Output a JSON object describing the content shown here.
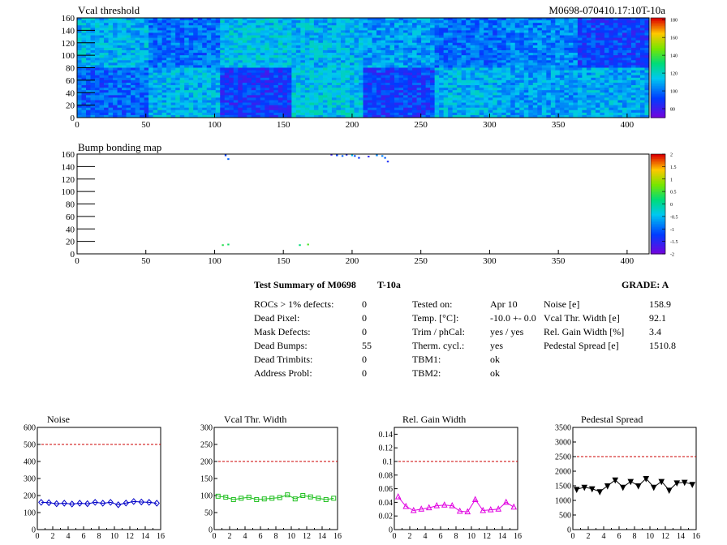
{
  "top_maps": [
    {
      "title": "Vcal threshold",
      "id_label": "M0698-070410.17:10T-10a",
      "x_ticks": [
        "0",
        "50",
        "100",
        "150",
        "200",
        "250",
        "300",
        "350",
        "400"
      ],
      "x_tick_values": [
        0,
        50,
        100,
        150,
        200,
        250,
        300,
        350,
        400
      ],
      "x_range": [
        0,
        416
      ],
      "y_ticks": [
        "0",
        "20",
        "40",
        "60",
        "80",
        "100",
        "120",
        "140",
        "160"
      ],
      "y_tick_values": [
        0,
        20,
        40,
        60,
        80,
        100,
        120,
        140,
        160
      ],
      "y_range": [
        0,
        160
      ],
      "palette_labels": [
        "180",
        "160",
        "140",
        "120",
        "100",
        "80"
      ],
      "palette_values": [
        180,
        160,
        140,
        120,
        100,
        80
      ],
      "palette_range": [
        70,
        182
      ]
    },
    {
      "title": "Bump bonding map",
      "x_ticks": [
        "0",
        "50",
        "100",
        "150",
        "200",
        "250",
        "300",
        "350",
        "400"
      ],
      "x_tick_values": [
        0,
        50,
        100,
        150,
        200,
        250,
        300,
        350,
        400
      ],
      "x_range": [
        0,
        416
      ],
      "y_ticks": [
        "0",
        "20",
        "40",
        "60",
        "80",
        "100",
        "120",
        "140",
        "160"
      ],
      "y_tick_values": [
        0,
        20,
        40,
        60,
        80,
        100,
        120,
        140,
        160
      ],
      "y_range": [
        0,
        160
      ],
      "palette_labels": [
        "2",
        "1.5",
        "1",
        "0.5",
        "0",
        "-0.5",
        "-1",
        "-1.5",
        "-2"
      ],
      "palette_values": [
        2,
        1.5,
        1,
        0.5,
        0,
        -0.5,
        -1,
        -1.5,
        -2
      ],
      "palette_range": [
        -2,
        2
      ]
    }
  ],
  "summary": {
    "title": "Test Summary of M0698",
    "temp_code": "T-10a",
    "grade": "GRADE:  A",
    "defects": [
      {
        "label": "ROCs > 1% defects:",
        "value": "0"
      },
      {
        "label": "Dead Pixel:",
        "value": "0"
      },
      {
        "label": "Mask Defects:",
        "value": "0"
      },
      {
        "label": "Dead Bumps:",
        "value": "55"
      },
      {
        "label": "Dead Trimbits:",
        "value": "0"
      },
      {
        "label": "Address Probl:",
        "value": "0"
      }
    ],
    "conditions": [
      {
        "label": "Tested on:",
        "value": "Apr 10"
      },
      {
        "label": "Temp. [°C]:",
        "value": "-10.0 +- 0.0"
      },
      {
        "label": "Trim / phCal:",
        "value": "yes / yes"
      },
      {
        "label": "Therm. cycl.:",
        "value": "yes"
      },
      {
        "label": "TBM1:",
        "value": "ok"
      },
      {
        "label": "TBM2:",
        "value": "ok"
      }
    ],
    "results": [
      {
        "label": "Noise [e]",
        "value": "158.9"
      },
      {
        "label": "Vcal Thr. Width [e]",
        "value": "92.1"
      },
      {
        "label": "Rel. Gain Width [%]",
        "value": "3.4"
      },
      {
        "label": "Pedestal Spread [e]",
        "value": "1510.8"
      }
    ]
  },
  "chart_data": [
    {
      "type": "heatmap",
      "title": "Vcal threshold",
      "x_range": [
        0,
        416
      ],
      "y_range": [
        0,
        160
      ],
      "z_range": [
        70,
        182
      ],
      "roc_grid": {
        "columns": 8,
        "rows": 2,
        "bottom_row_mean": [
          98,
          112,
          90,
          115,
          92,
          112,
          108,
          110
        ],
        "top_row_mean": [
          112,
          100,
          115,
          112,
          108,
          100,
          104,
          92
        ]
      }
    },
    {
      "type": "heatmap",
      "title": "Bump bonding map",
      "x_range": [
        0,
        416
      ],
      "y_range": [
        0,
        160
      ],
      "z_range": [
        -2,
        2
      ],
      "points": [
        {
          "x": 108,
          "y": 158,
          "z": -1.2
        },
        {
          "x": 110,
          "y": 152,
          "z": -1.0
        },
        {
          "x": 106,
          "y": 14,
          "z": 0.4
        },
        {
          "x": 110,
          "y": 15,
          "z": 0.3
        },
        {
          "x": 162,
          "y": 14,
          "z": 0.2
        },
        {
          "x": 168,
          "y": 15,
          "z": 0.6
        },
        {
          "x": 185,
          "y": 159,
          "z": -1.6
        },
        {
          "x": 189,
          "y": 158,
          "z": -1.2
        },
        {
          "x": 193,
          "y": 157,
          "z": -1.0
        },
        {
          "x": 196,
          "y": 159,
          "z": -1.4
        },
        {
          "x": 200,
          "y": 158,
          "z": -0.5
        },
        {
          "x": 202,
          "y": 157,
          "z": -1.1
        },
        {
          "x": 205,
          "y": 154,
          "z": -1.3
        },
        {
          "x": 212,
          "y": 156,
          "z": -1.5
        },
        {
          "x": 218,
          "y": 158,
          "z": -0.8
        },
        {
          "x": 222,
          "y": 157,
          "z": -0.8
        },
        {
          "x": 224,
          "y": 154,
          "z": -1.0
        },
        {
          "x": 226,
          "y": 148,
          "z": -1.4
        }
      ]
    },
    {
      "type": "line",
      "title": "Noise",
      "x": [
        0,
        1,
        2,
        3,
        4,
        5,
        6,
        7,
        8,
        9,
        10,
        11,
        12,
        13,
        14,
        15
      ],
      "values": [
        160,
        158,
        152,
        155,
        150,
        155,
        152,
        160,
        155,
        160,
        146,
        156,
        165,
        162,
        160,
        155
      ],
      "xlim": [
        0,
        16
      ],
      "ylim": [
        0,
        600
      ],
      "x_ticks": [
        "0",
        "2",
        "4",
        "6",
        "8",
        "10",
        "12",
        "14",
        "16"
      ],
      "y_ticks": [
        "0",
        "100",
        "200",
        "300",
        "400",
        "500",
        "600"
      ],
      "threshold": 500,
      "color": "#0000c8",
      "marker": "diamond"
    },
    {
      "type": "line",
      "title": "Vcal Thr. Width",
      "x": [
        0,
        1,
        2,
        3,
        4,
        5,
        6,
        7,
        8,
        9,
        10,
        11,
        12,
        13,
        14,
        15
      ],
      "values": [
        98,
        95,
        88,
        92,
        95,
        88,
        90,
        92,
        94,
        102,
        90,
        100,
        96,
        92,
        88,
        92
      ],
      "xlim": [
        0,
        16
      ],
      "ylim": [
        0,
        300
      ],
      "x_ticks": [
        "0",
        "2",
        "4",
        "6",
        "8",
        "10",
        "12",
        "14",
        "16"
      ],
      "y_ticks": [
        "0",
        "50",
        "100",
        "150",
        "200",
        "250",
        "300"
      ],
      "threshold": 200,
      "color": "#20c020",
      "marker": "square"
    },
    {
      "type": "line",
      "title": "Rel. Gain Width",
      "x": [
        0,
        1,
        2,
        3,
        4,
        5,
        6,
        7,
        8,
        9,
        10,
        11,
        12,
        13,
        14,
        15
      ],
      "values": [
        0.048,
        0.034,
        0.028,
        0.03,
        0.032,
        0.035,
        0.036,
        0.035,
        0.027,
        0.026,
        0.044,
        0.028,
        0.029,
        0.03,
        0.04,
        0.033
      ],
      "xlim": [
        0,
        16
      ],
      "ylim": [
        0,
        0.15
      ],
      "x_ticks": [
        "0",
        "2",
        "4",
        "6",
        "8",
        "10",
        "12",
        "14",
        "16"
      ],
      "y_ticks": [
        "0",
        "0.02",
        "0.04",
        "0.06",
        "0.08",
        "0.1",
        "0.12",
        "0.14"
      ],
      "y_tick_values": [
        0,
        0.02,
        0.04,
        0.06,
        0.08,
        0.1,
        0.12,
        0.14
      ],
      "threshold": 0.1,
      "color": "#e000e0",
      "marker": "triangle-up"
    },
    {
      "type": "line",
      "title": "Pedestal Spread",
      "x": [
        0,
        1,
        2,
        3,
        4,
        5,
        6,
        7,
        8,
        9,
        10,
        11,
        12,
        13,
        14,
        15
      ],
      "values": [
        1380,
        1450,
        1400,
        1300,
        1500,
        1700,
        1450,
        1650,
        1500,
        1750,
        1450,
        1650,
        1350,
        1600,
        1620,
        1550
      ],
      "xlim": [
        0,
        16
      ],
      "ylim": [
        0,
        3500
      ],
      "x_ticks": [
        "0",
        "2",
        "4",
        "6",
        "8",
        "10",
        "12",
        "14",
        "16"
      ],
      "y_ticks": [
        "0",
        "500",
        "1000",
        "1500",
        "2000",
        "2500",
        "3000",
        "3500"
      ],
      "threshold": 2500,
      "color": "#000000",
      "marker": "triangle-down"
    }
  ]
}
